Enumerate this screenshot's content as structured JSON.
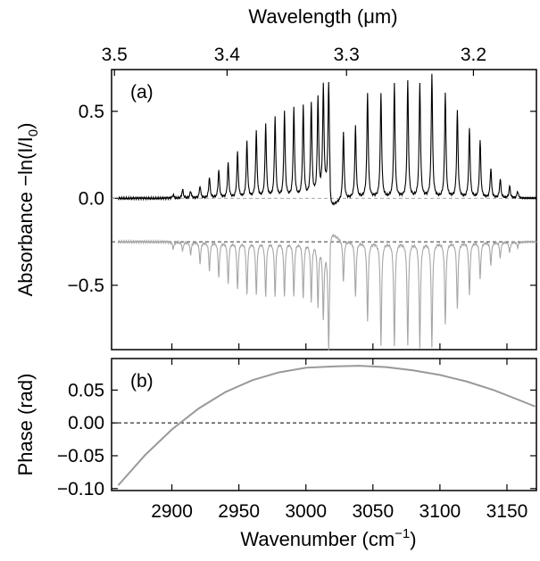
{
  "chart_data": [
    {
      "panel_label": "(a)",
      "type": "line",
      "ylabel": "Absorbance −ln(I/I",
      "ylabel_sub": "0",
      "ylabel_end": ")",
      "ylim": [
        -0.87,
        0.74
      ],
      "yticks": [
        0.5,
        0.0,
        -0.5
      ],
      "ytick_labels": [
        "0.5",
        "0.0",
        "−0.5"
      ],
      "top_axis": {
        "label_pre": "Wavelength (",
        "label_mu": "μ",
        "label_post": "m)",
        "ticks_um": [
          3.5,
          3.4,
          3.3,
          3.2
        ],
        "tick_labels": [
          "3.5",
          "3.4",
          "3.3",
          "3.2"
        ]
      },
      "xlim": [
        2855,
        3172
      ],
      "reference_lines": [
        {
          "y": 0.0,
          "style": "dashed",
          "color": "#aaaaaa"
        },
        {
          "y": -0.25,
          "style": "dashed",
          "color": "#333333"
        }
      ],
      "series": [
        {
          "color": "#000000",
          "baseline": 0.0,
          "peaks": [
            [
              2901,
              0.02
            ],
            [
              2908,
              0.05
            ],
            [
              2914,
              0.04
            ],
            [
              2921,
              0.07
            ],
            [
              2928,
              0.12
            ],
            [
              2935,
              0.16
            ],
            [
              2942,
              0.2
            ],
            [
              2949,
              0.26
            ],
            [
              2956,
              0.32
            ],
            [
              2963,
              0.38
            ],
            [
              2970,
              0.42
            ],
            [
              2977,
              0.46
            ],
            [
              2984,
              0.49
            ],
            [
              2991,
              0.51
            ],
            [
              2998,
              0.52
            ],
            [
              3004,
              0.54
            ],
            [
              3009,
              0.56
            ],
            [
              3013,
              0.6
            ],
            [
              3017,
              0.61
            ],
            [
              3028,
              0.39
            ],
            [
              3037,
              0.41
            ],
            [
              3046,
              0.6
            ],
            [
              3056,
              0.6
            ],
            [
              3066,
              0.65
            ],
            [
              3076,
              0.67
            ],
            [
              3085,
              0.66
            ],
            [
              3094,
              0.71
            ],
            [
              3104,
              0.6
            ],
            [
              3113,
              0.5
            ],
            [
              3122,
              0.4
            ],
            [
              3130,
              0.33
            ],
            [
              3138,
              0.17
            ],
            [
              3145,
              0.11
            ],
            [
              3152,
              0.07
            ],
            [
              3158,
              0.04
            ]
          ]
        },
        {
          "color": "#a6a6a6",
          "baseline": -0.25,
          "peaks": [
            [
              2901,
              -0.29
            ],
            [
              2908,
              -0.3
            ],
            [
              2914,
              -0.32
            ],
            [
              2921,
              -0.37
            ],
            [
              2928,
              -0.41
            ],
            [
              2935,
              -0.45
            ],
            [
              2942,
              -0.49
            ],
            [
              2949,
              -0.52
            ],
            [
              2956,
              -0.55
            ],
            [
              2963,
              -0.55
            ],
            [
              2970,
              -0.56
            ],
            [
              2977,
              -0.56
            ],
            [
              2984,
              -0.56
            ],
            [
              2991,
              -0.56
            ],
            [
              2998,
              -0.57
            ],
            [
              3004,
              -0.58
            ],
            [
              3009,
              -0.6
            ],
            [
              3013,
              -0.65
            ],
            [
              3017,
              -0.82
            ],
            [
              3028,
              -0.49
            ],
            [
              3037,
              -0.57
            ],
            [
              3046,
              -0.7
            ],
            [
              3056,
              -0.84
            ],
            [
              3066,
              -0.85
            ],
            [
              3076,
              -0.84
            ],
            [
              3085,
              -0.85
            ],
            [
              3094,
              -0.85
            ],
            [
              3104,
              -0.72
            ],
            [
              3113,
              -0.63
            ],
            [
              3122,
              -0.55
            ],
            [
              3130,
              -0.46
            ],
            [
              3138,
              -0.38
            ],
            [
              3145,
              -0.34
            ],
            [
              3152,
              -0.31
            ],
            [
              3158,
              -0.28
            ]
          ]
        }
      ]
    },
    {
      "panel_label": "(b)",
      "type": "line",
      "ylabel": "Phase (rad)",
      "ylim": [
        -0.103,
        0.098
      ],
      "yticks": [
        0.05,
        0.0,
        -0.05,
        -0.1
      ],
      "ytick_labels": [
        "0.05",
        "0.00",
        "−0.05",
        "−0.10"
      ],
      "xlabel": "Wavenumber (cm",
      "xlabel_sup": "−1",
      "xlabel_end": ")",
      "xlim": [
        2855,
        3172
      ],
      "xticks": [
        2900,
        2950,
        3000,
        3050,
        3100,
        3150
      ],
      "xtick_labels": [
        "2900",
        "2950",
        "3000",
        "3050",
        "3100",
        "3150"
      ],
      "reference_lines": [
        {
          "y": 0.0,
          "style": "dashed",
          "color": "#000000"
        }
      ],
      "series": [
        {
          "color": "#999999",
          "x": [
            2860,
            2880,
            2900,
            2920,
            2940,
            2960,
            2980,
            3000,
            3020,
            3040,
            3060,
            3080,
            3100,
            3120,
            3140,
            3160,
            3171
          ],
          "y": [
            -0.095,
            -0.049,
            -0.01,
            0.022,
            0.047,
            0.065,
            0.077,
            0.084,
            0.086,
            0.087,
            0.085,
            0.08,
            0.073,
            0.063,
            0.05,
            0.034,
            0.025
          ]
        }
      ]
    }
  ]
}
